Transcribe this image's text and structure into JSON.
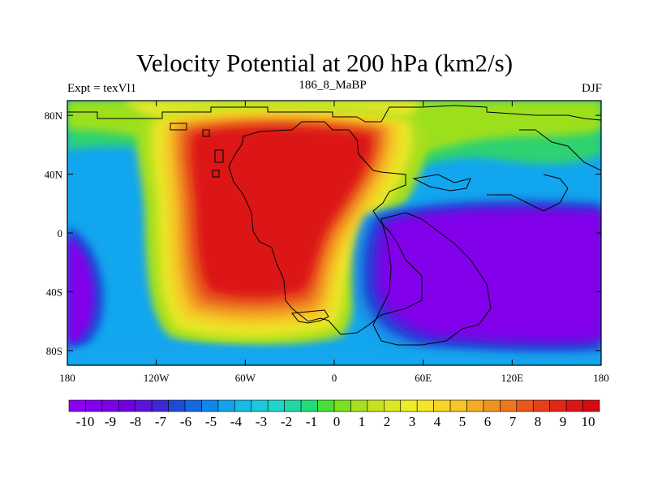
{
  "title": "Velocity Potential at 200 hPa (km2/s)",
  "left_label": "Expt = texVl1",
  "center_label": "186_8_MaBP",
  "right_label": "DJF",
  "map": {
    "lon_range": [
      -180,
      180
    ],
    "lat_range": [
      -90,
      90
    ],
    "x_ticks": [
      {
        "lon": -180,
        "label": "180"
      },
      {
        "lon": -120,
        "label": "120W"
      },
      {
        "lon": -60,
        "label": "60W"
      },
      {
        "lon": 0,
        "label": "0"
      },
      {
        "lon": 60,
        "label": "60E"
      },
      {
        "lon": 120,
        "label": "120E"
      },
      {
        "lon": 180,
        "label": "180"
      }
    ],
    "y_ticks": [
      {
        "lat": 80,
        "label": "80N"
      },
      {
        "lat": 40,
        "label": "40N"
      },
      {
        "lat": 0,
        "label": "0"
      },
      {
        "lat": -40,
        "label": "40S"
      },
      {
        "lat": -80,
        "label": "80S"
      }
    ],
    "field_features": [
      {
        "name": "positive-center",
        "lon": -40,
        "lat": 15,
        "value": 10
      },
      {
        "name": "negative-center",
        "lon": 90,
        "lat": -15,
        "value": -10
      },
      {
        "name": "negative-west-edge",
        "lon": -175,
        "lat": -30,
        "value": -10
      }
    ]
  },
  "colorbar": {
    "labels": [
      "-10",
      "-9",
      "-8",
      "-7",
      "-6",
      "-5",
      "-4",
      "-3",
      "-2",
      "-1",
      "0",
      "1",
      "2",
      "3",
      "4",
      "5",
      "6",
      "7",
      "8",
      "9",
      "10"
    ],
    "colors": [
      "#8a00f0",
      "#8200ea",
      "#7a00e6",
      "#7000e0",
      "#5c14dc",
      "#3c28d6",
      "#1f4ad6",
      "#1568e0",
      "#0e86ea",
      "#14a2ec",
      "#18bae8",
      "#1ec8dc",
      "#20d4c8",
      "#1ed8a8",
      "#22dc7a",
      "#48e038",
      "#7ce01c",
      "#a8e01e",
      "#c8e020",
      "#dce624",
      "#ecec2a",
      "#f4e42a",
      "#f8d428",
      "#f8c426",
      "#f4ac22",
      "#f09420",
      "#ec781e",
      "#e8581c",
      "#e4401a",
      "#e02818",
      "#dc1414",
      "#d60a10"
    ]
  }
}
